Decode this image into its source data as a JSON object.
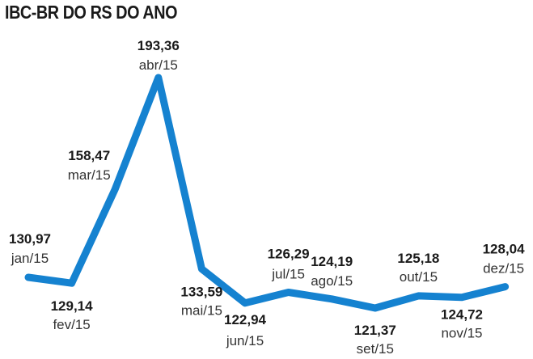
{
  "title": "IBC-BR DO RS DO ANO",
  "colors": {
    "line": "#1582d0",
    "text": "#1a1a1a"
  },
  "chart_data": {
    "type": "line",
    "title": "IBC-BR DO RS DO ANO",
    "xlabel": "",
    "ylabel": "",
    "grid": false,
    "legend": "none",
    "categories": [
      "jan/15",
      "fev/15",
      "mar/15",
      "abr/15",
      "mai/15",
      "jun/15",
      "jul/15",
      "ago/15",
      "set/15",
      "out/15",
      "nov/15",
      "dez/15"
    ],
    "series": [
      {
        "values": [
          130.97,
          129.14,
          158.47,
          193.36,
          133.59,
          122.94,
          126.29,
          124.19,
          121.37,
          125.18,
          124.72,
          128.04
        ],
        "value_labels": [
          "130,97",
          "129,14",
          "158,47",
          "193,36",
          "133,59",
          "122,94",
          "126,29",
          "124,19",
          "121,37",
          "125,18",
          "124,72",
          "128,04"
        ]
      }
    ]
  }
}
